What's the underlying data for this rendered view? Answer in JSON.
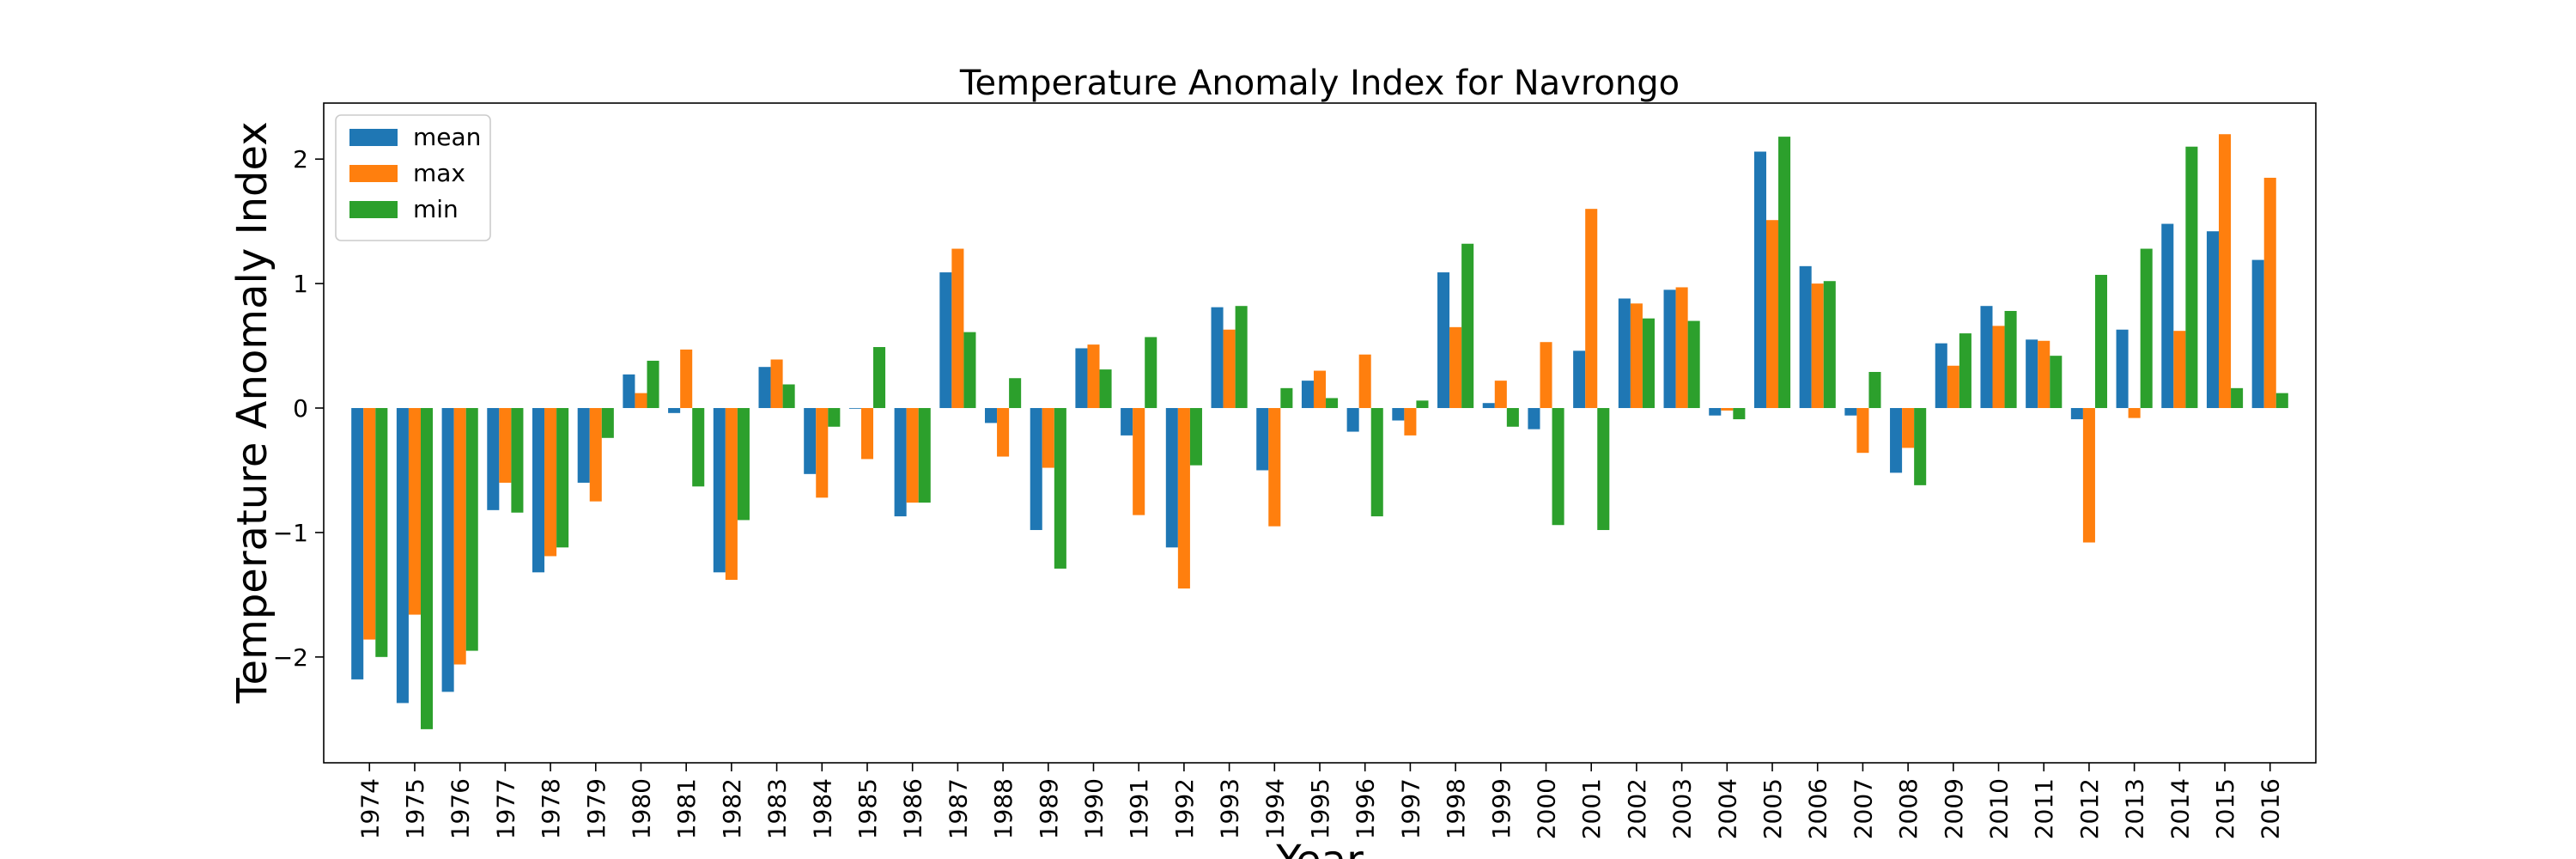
{
  "chart_data": {
    "type": "bar",
    "title": "Temperature Anomaly Index for Navrongo",
    "xlabel": "Year",
    "ylabel": "Temperature Anomaly Index",
    "ylim": [
      -2.85,
      2.45
    ],
    "yticks": [
      -2,
      -1,
      0,
      1,
      2
    ],
    "ytick_labels": [
      "−2",
      "−1",
      "0",
      "1",
      "2"
    ],
    "legend_position": "top-left",
    "grid": false,
    "categories": [
      "1974",
      "1975",
      "1976",
      "1977",
      "1978",
      "1979",
      "1980",
      "1981",
      "1982",
      "1983",
      "1984",
      "1985",
      "1986",
      "1987",
      "1988",
      "1989",
      "1990",
      "1991",
      "1992",
      "1993",
      "1994",
      "1995",
      "1996",
      "1997",
      "1998",
      "1999",
      "2000",
      "2001",
      "2002",
      "2003",
      "2004",
      "2005",
      "2006",
      "2007",
      "2008",
      "2009",
      "2010",
      "2011",
      "2012",
      "2013",
      "2014",
      "2015",
      "2016"
    ],
    "series": [
      {
        "name": "mean",
        "color": "#1f77b4",
        "values": [
          -2.18,
          -2.37,
          -2.28,
          -0.82,
          -1.32,
          -0.6,
          0.27,
          -0.04,
          -1.32,
          0.33,
          -0.53,
          0.0,
          -0.87,
          1.09,
          -0.12,
          -0.98,
          0.48,
          -0.22,
          -1.12,
          0.81,
          -0.5,
          0.22,
          -0.19,
          -0.1,
          1.09,
          0.04,
          -0.17,
          0.46,
          0.88,
          0.95,
          -0.06,
          2.06,
          1.14,
          -0.06,
          -0.52,
          0.52,
          0.82,
          0.55,
          -0.09,
          0.63,
          1.48,
          1.42,
          1.19
        ]
      },
      {
        "name": "max",
        "color": "#ff7f0e",
        "values": [
          -1.86,
          -1.66,
          -2.06,
          -0.6,
          -1.19,
          -0.75,
          0.12,
          0.47,
          -1.38,
          0.39,
          -0.72,
          -0.41,
          -0.76,
          1.28,
          -0.39,
          -0.48,
          0.51,
          -0.86,
          -1.45,
          0.63,
          -0.95,
          0.3,
          0.43,
          -0.22,
          0.65,
          0.22,
          0.53,
          1.6,
          0.84,
          0.97,
          -0.02,
          1.51,
          1.0,
          -0.36,
          -0.32,
          0.34,
          0.66,
          0.54,
          -1.08,
          -0.08,
          0.62,
          2.2,
          1.85
        ]
      },
      {
        "name": "min",
        "color": "#2ca02c",
        "values": [
          -2.0,
          -2.58,
          -1.95,
          -0.84,
          -1.12,
          -0.24,
          0.38,
          -0.63,
          -0.9,
          0.19,
          -0.15,
          0.49,
          -0.76,
          0.61,
          0.24,
          -1.29,
          0.31,
          0.57,
          -0.46,
          0.82,
          0.16,
          0.08,
          -0.87,
          0.06,
          1.32,
          -0.15,
          -0.94,
          -0.98,
          0.72,
          0.7,
          -0.09,
          2.18,
          1.02,
          0.29,
          -0.62,
          0.6,
          0.78,
          0.42,
          1.07,
          1.28,
          2.1,
          0.16,
          0.12
        ]
      }
    ]
  }
}
